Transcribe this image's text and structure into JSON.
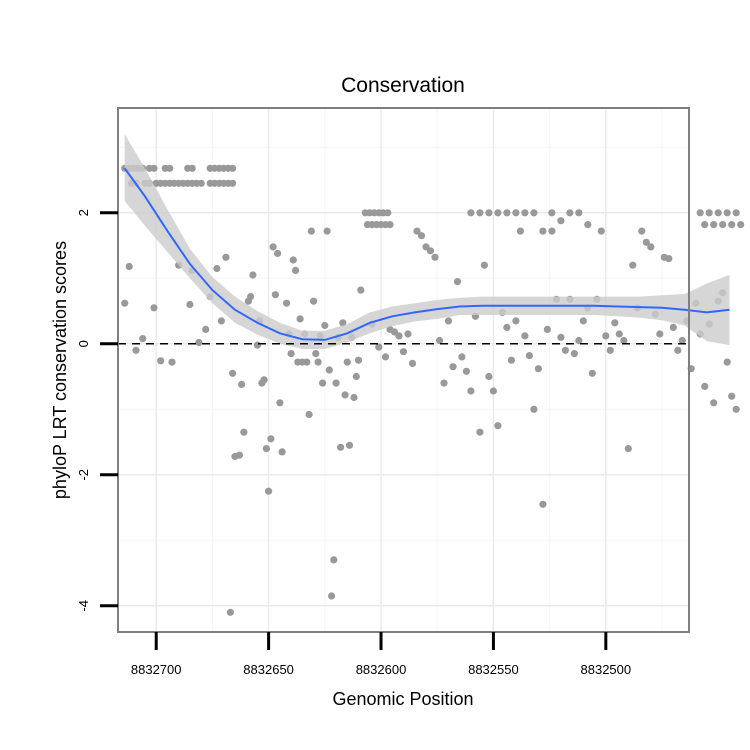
{
  "chart_data": {
    "type": "scatter",
    "title": "Conservation",
    "xlabel": "Genomic Position",
    "ylabel": "phyloP LRT conservation scores",
    "x_reversed": true,
    "xlim": [
      8832717,
      8832463
    ],
    "ylim": [
      -4.4,
      3.6
    ],
    "x_ticks": [
      8832700,
      8832650,
      8832600,
      8832550,
      8832500
    ],
    "x_tick_labels": [
      "8832700",
      "8832650",
      "8832600",
      "8832550",
      "8832500"
    ],
    "y_ticks": [
      -4,
      -2,
      0,
      2
    ],
    "y_tick_labels": [
      "-4",
      "-2",
      "0",
      "2"
    ],
    "reference_line": {
      "y": 0,
      "style": "dashed"
    },
    "colors": {
      "points": "#999999",
      "smooth": "#3366ff",
      "ribbon": "#cccccc",
      "panel_border": "#7f7f7f",
      "grid_major": "#ebebeb",
      "grid_minor": "#f6f6f6"
    },
    "points": [
      [
        8832714,
        2.68
      ],
      [
        8832712,
        2.68
      ],
      [
        8832710,
        2.68
      ],
      [
        8832708,
        2.68
      ],
      [
        8832706,
        2.68
      ],
      [
        8832703,
        2.68
      ],
      [
        8832701,
        2.68
      ],
      [
        8832696,
        2.68
      ],
      [
        8832694,
        2.68
      ],
      [
        8832686,
        2.68
      ],
      [
        8832684,
        2.68
      ],
      [
        8832676,
        2.68
      ],
      [
        8832674,
        2.68
      ],
      [
        8832672,
        2.68
      ],
      [
        8832670,
        2.68
      ],
      [
        8832668,
        2.68
      ],
      [
        8832666,
        2.68
      ],
      [
        8832711,
        2.45
      ],
      [
        8832709,
        2.45
      ],
      [
        8832705,
        2.45
      ],
      [
        8832703,
        2.45
      ],
      [
        8832700,
        2.45
      ],
      [
        8832698,
        2.45
      ],
      [
        8832696,
        2.45
      ],
      [
        8832694,
        2.45
      ],
      [
        8832692,
        2.45
      ],
      [
        8832690,
        2.45
      ],
      [
        8832688,
        2.45
      ],
      [
        8832686,
        2.45
      ],
      [
        8832684,
        2.45
      ],
      [
        8832682,
        2.45
      ],
      [
        8832680,
        2.45
      ],
      [
        8832676,
        2.45
      ],
      [
        8832674,
        2.45
      ],
      [
        8832672,
        2.45
      ],
      [
        8832670,
        2.45
      ],
      [
        8832668,
        2.45
      ],
      [
        8832666,
        2.45
      ],
      [
        8832714,
        0.62
      ],
      [
        8832712,
        1.18
      ],
      [
        8832709,
        -0.1
      ],
      [
        8832706,
        0.08
      ],
      [
        8832701,
        0.55
      ],
      [
        8832698,
        -0.26
      ],
      [
        8832693,
        -0.28
      ],
      [
        8832690,
        1.2
      ],
      [
        8832685,
        0.6
      ],
      [
        8832684,
        1.12
      ],
      [
        8832681,
        0.02
      ],
      [
        8832678,
        0.22
      ],
      [
        8832676,
        0.72
      ],
      [
        8832673,
        1.15
      ],
      [
        8832671,
        0.35
      ],
      [
        8832669,
        1.32
      ],
      [
        8832666,
        -0.45
      ],
      [
        8832665,
        -1.72
      ],
      [
        8832663,
        -1.7
      ],
      [
        8832662,
        -0.62
      ],
      [
        8832661,
        -1.35
      ],
      [
        8832659,
        0.65
      ],
      [
        8832658,
        0.72
      ],
      [
        8832657,
        1.05
      ],
      [
        8832655,
        -0.02
      ],
      [
        8832654,
        0.35
      ],
      [
        8832653,
        -0.6
      ],
      [
        8832652,
        -0.55
      ],
      [
        8832651,
        -1.6
      ],
      [
        8832650,
        -2.25
      ],
      [
        8832649,
        -1.45
      ],
      [
        8832648,
        1.48
      ],
      [
        8832647,
        0.75
      ],
      [
        8832646,
        1.38
      ],
      [
        8832645,
        -0.9
      ],
      [
        8832644,
        -1.65
      ],
      [
        8832642,
        0.62
      ],
      [
        8832641,
        0.15
      ],
      [
        8832640,
        -0.15
      ],
      [
        8832639,
        1.28
      ],
      [
        8832638,
        1.12
      ],
      [
        8832637,
        -0.28
      ],
      [
        8832636,
        0.38
      ],
      [
        8832635,
        -0.28
      ],
      [
        8832634,
        0.15
      ],
      [
        8832633,
        -0.28
      ],
      [
        8832632,
        -1.08
      ],
      [
        8832631,
        1.72
      ],
      [
        8832630,
        0.65
      ],
      [
        8832629,
        -0.15
      ],
      [
        8832628,
        -0.28
      ],
      [
        8832627,
        0.12
      ],
      [
        8832626,
        -0.6
      ],
      [
        8832625,
        0.28
      ],
      [
        8832624,
        1.72
      ],
      [
        8832623,
        -0.4
      ],
      [
        8832622,
        -3.85
      ],
      [
        8832621,
        -3.3
      ],
      [
        8832620,
        -0.6
      ],
      [
        8832619,
        0.1
      ],
      [
        8832618,
        -1.58
      ],
      [
        8832617,
        0.32
      ],
      [
        8832616,
        -0.78
      ],
      [
        8832615,
        -0.28
      ],
      [
        8832614,
        -1.55
      ],
      [
        8832613,
        0.1
      ],
      [
        8832612,
        -0.82
      ],
      [
        8832611,
        -0.5
      ],
      [
        8832610,
        -0.25
      ],
      [
        8832609,
        0.82
      ],
      [
        8832667,
        -4.1
      ],
      [
        8832607,
        2.0
      ],
      [
        8832605,
        2.0
      ],
      [
        8832603,
        2.0
      ],
      [
        8832601,
        2.0
      ],
      [
        8832599,
        2.0
      ],
      [
        8832597,
        2.0
      ],
      [
        8832606,
        1.82
      ],
      [
        8832604,
        1.82
      ],
      [
        8832602,
        1.82
      ],
      [
        8832600,
        1.82
      ],
      [
        8832598,
        1.82
      ],
      [
        8832596,
        1.82
      ],
      [
        8832604,
        0.3
      ],
      [
        8832601,
        -0.05
      ],
      [
        8832598,
        -0.2
      ],
      [
        8832596,
        0.22
      ],
      [
        8832594,
        0.18
      ],
      [
        8832592,
        0.12
      ],
      [
        8832590,
        -0.12
      ],
      [
        8832588,
        0.15
      ],
      [
        8832586,
        -0.3
      ],
      [
        8832584,
        1.72
      ],
      [
        8832582,
        1.65
      ],
      [
        8832580,
        1.48
      ],
      [
        8832578,
        1.42
      ],
      [
        8832576,
        1.32
      ],
      [
        8832574,
        0.05
      ],
      [
        8832572,
        -0.6
      ],
      [
        8832570,
        0.35
      ],
      [
        8832568,
        -0.35
      ],
      [
        8832566,
        0.95
      ],
      [
        8832564,
        -0.2
      ],
      [
        8832562,
        -0.42
      ],
      [
        8832560,
        -0.72
      ],
      [
        8832558,
        0.42
      ],
      [
        8832556,
        -1.35
      ],
      [
        8832554,
        1.2
      ],
      [
        8832552,
        -0.5
      ],
      [
        8832550,
        -0.72
      ],
      [
        8832548,
        -1.25
      ],
      [
        8832546,
        0.48
      ],
      [
        8832544,
        0.25
      ],
      [
        8832542,
        -0.25
      ],
      [
        8832540,
        0.35
      ],
      [
        8832538,
        1.72
      ],
      [
        8832536,
        0.12
      ],
      [
        8832534,
        -0.18
      ],
      [
        8832532,
        -1.0
      ],
      [
        8832530,
        -0.38
      ],
      [
        8832528,
        -2.45
      ],
      [
        8832526,
        0.22
      ],
      [
        8832524,
        2.0
      ],
      [
        8832522,
        0.68
      ],
      [
        8832520,
        0.1
      ],
      [
        8832518,
        -0.1
      ],
      [
        8832516,
        0.68
      ],
      [
        8832514,
        -0.15
      ],
      [
        8832512,
        0.05
      ],
      [
        8832510,
        0.35
      ],
      [
        8832508,
        0.55
      ],
      [
        8832506,
        -0.45
      ],
      [
        8832504,
        0.68
      ],
      [
        8832502,
        1.72
      ],
      [
        8832500,
        0.12
      ],
      [
        8832498,
        -0.1
      ],
      [
        8832496,
        0.32
      ],
      [
        8832494,
        0.15
      ],
      [
        8832492,
        0.05
      ],
      [
        8832490,
        -1.6
      ],
      [
        8832488,
        1.2
      ],
      [
        8832486,
        0.55
      ],
      [
        8832484,
        1.72
      ],
      [
        8832482,
        1.55
      ],
      [
        8832480,
        1.48
      ],
      [
        8832478,
        0.45
      ],
      [
        8832476,
        0.15
      ],
      [
        8832474,
        1.32
      ],
      [
        8832472,
        1.3
      ],
      [
        8832470,
        0.25
      ],
      [
        8832468,
        -0.1
      ],
      [
        8832466,
        0.05
      ],
      [
        8832464,
        0.35
      ],
      [
        8832462,
        -0.38
      ],
      [
        8832460,
        0.62
      ],
      [
        8832458,
        0.15
      ],
      [
        8832456,
        -0.65
      ],
      [
        8832454,
        0.3
      ],
      [
        8832452,
        -0.9
      ],
      [
        8832450,
        0.65
      ],
      [
        8832448,
        0.78
      ],
      [
        8832446,
        -0.28
      ],
      [
        8832444,
        -0.8
      ],
      [
        8832442,
        -1.0
      ],
      [
        8832560,
        2.0
      ],
      [
        8832556,
        2.0
      ],
      [
        8832552,
        2.0
      ],
      [
        8832548,
        2.0
      ],
      [
        8832544,
        2.0
      ],
      [
        8832540,
        2.0
      ],
      [
        8832536,
        2.0
      ],
      [
        8832532,
        2.0
      ],
      [
        8832528,
        1.72
      ],
      [
        8832524,
        1.72
      ],
      [
        8832520,
        1.88
      ],
      [
        8832516,
        2.0
      ],
      [
        8832512,
        2.0
      ],
      [
        8832508,
        1.82
      ],
      [
        8832458,
        2.0
      ],
      [
        8832454,
        2.0
      ],
      [
        8832450,
        2.0
      ],
      [
        8832446,
        2.0
      ],
      [
        8832442,
        2.0
      ],
      [
        8832456,
        1.82
      ],
      [
        8832452,
        1.82
      ],
      [
        8832448,
        1.82
      ],
      [
        8832444,
        1.82
      ],
      [
        8832440,
        1.82
      ]
    ],
    "smooth_line": [
      [
        8832714,
        2.68
      ],
      [
        8832705,
        2.25
      ],
      [
        8832695,
        1.72
      ],
      [
        8832685,
        1.22
      ],
      [
        8832675,
        0.82
      ],
      [
        8832665,
        0.52
      ],
      [
        8832655,
        0.32
      ],
      [
        8832645,
        0.16
      ],
      [
        8832635,
        0.07
      ],
      [
        8832625,
        0.06
      ],
      [
        8832615,
        0.16
      ],
      [
        8832605,
        0.32
      ],
      [
        8832595,
        0.42
      ],
      [
        8832585,
        0.48
      ],
      [
        8832575,
        0.53
      ],
      [
        8832565,
        0.57
      ],
      [
        8832555,
        0.58
      ],
      [
        8832545,
        0.58
      ],
      [
        8832535,
        0.58
      ],
      [
        8832525,
        0.58
      ],
      [
        8832515,
        0.58
      ],
      [
        8832505,
        0.58
      ],
      [
        8832495,
        0.57
      ],
      [
        8832485,
        0.56
      ],
      [
        8832475,
        0.55
      ],
      [
        8832465,
        0.52
      ],
      [
        8832455,
        0.48
      ],
      [
        8832445,
        0.52
      ]
    ],
    "ribbon": {
      "upper": [
        3.2,
        2.68,
        2.05,
        1.45,
        1.02,
        0.72,
        0.5,
        0.32,
        0.2,
        0.2,
        0.3,
        0.48,
        0.57,
        0.62,
        0.67,
        0.7,
        0.72,
        0.72,
        0.72,
        0.72,
        0.72,
        0.72,
        0.72,
        0.72,
        0.74,
        0.76,
        0.92,
        1.05
      ],
      "lower": [
        2.18,
        1.8,
        1.4,
        1.0,
        0.62,
        0.32,
        0.14,
        0.0,
        -0.08,
        -0.08,
        0.02,
        0.16,
        0.27,
        0.34,
        0.38,
        0.44,
        0.44,
        0.44,
        0.44,
        0.44,
        0.44,
        0.44,
        0.42,
        0.4,
        0.36,
        0.28,
        0.04,
        -0.02
      ]
    }
  }
}
